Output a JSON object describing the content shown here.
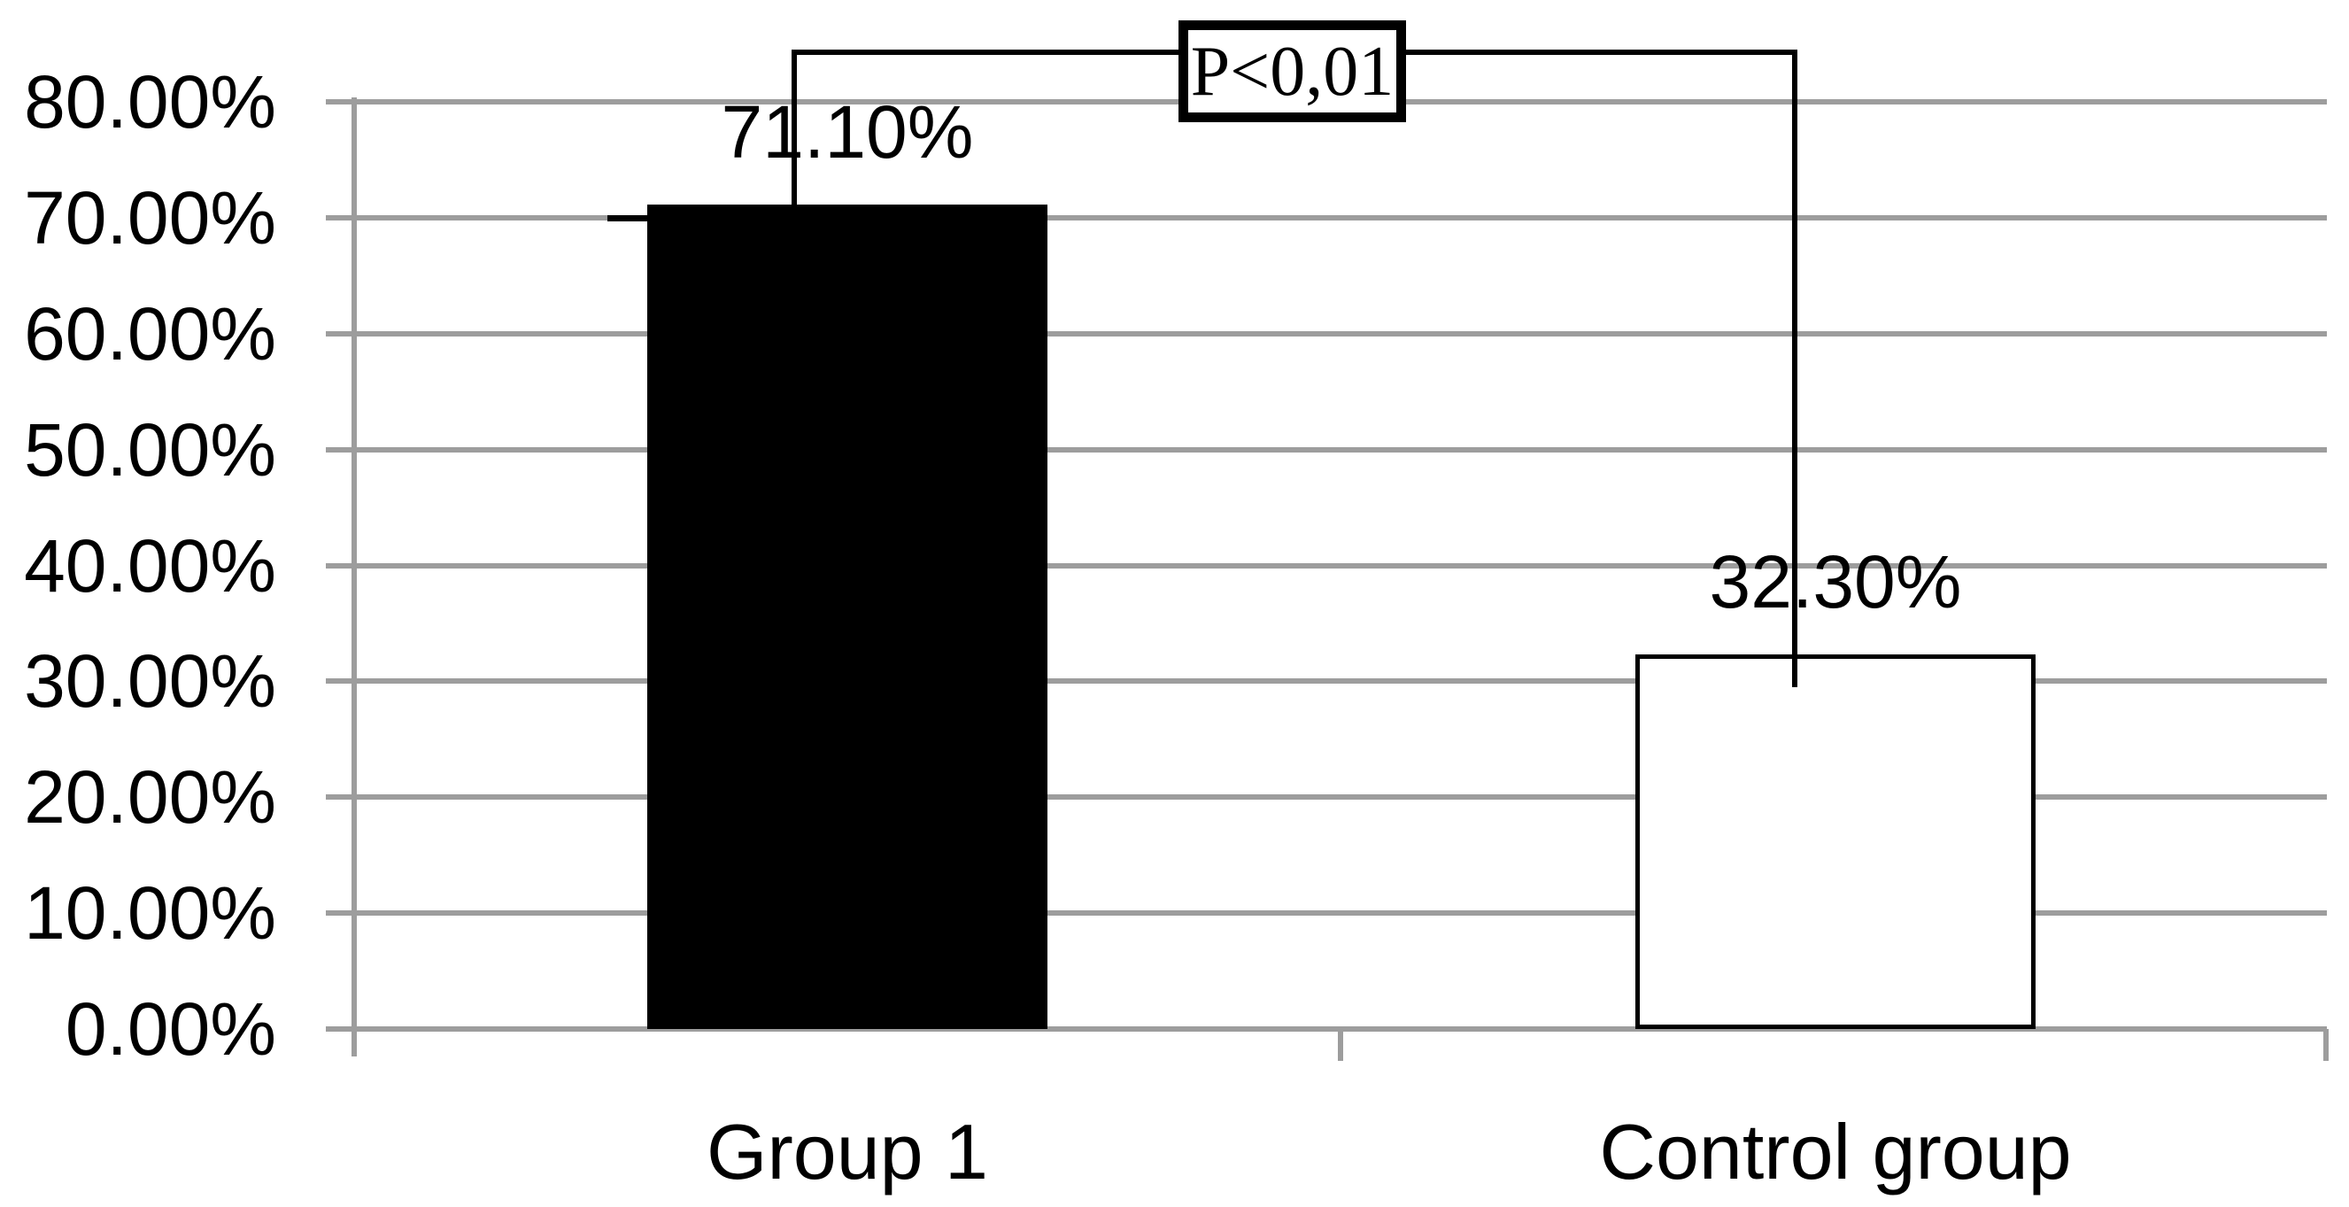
{
  "chart_data": {
    "type": "bar",
    "title": "",
    "xlabel": "",
    "ylabel": "",
    "categories": [
      "Group 1",
      "Control group"
    ],
    "values": [
      71.1,
      32.3
    ],
    "bars": [
      {
        "category": "Group 1",
        "value": 71.1,
        "data_label": "71.10%",
        "fill": "#000000",
        "border": "#000000"
      },
      {
        "category": "Control group",
        "value": 32.3,
        "data_label": "32.30%",
        "fill": "#ffffff",
        "border": "#000000"
      }
    ],
    "ylim": [
      0,
      80
    ],
    "yticks": [
      {
        "value": 80,
        "label": "80.00%"
      },
      {
        "value": 70,
        "label": "70.00%"
      },
      {
        "value": 60,
        "label": "60.00%"
      },
      {
        "value": 50,
        "label": "50.00%"
      },
      {
        "value": 40,
        "label": "40.00%"
      },
      {
        "value": 30,
        "label": "30.00%"
      },
      {
        "value": 20,
        "label": "20.00%"
      },
      {
        "value": 10,
        "label": "10.00%"
      },
      {
        "value": 0,
        "label": "0.00%"
      }
    ],
    "grid": true,
    "legend": "none",
    "annotation": {
      "type": "significance-bracket",
      "label": "P<0,01",
      "connects": [
        "Group 1",
        "Control group"
      ]
    },
    "colors": {
      "grid": "#9d9d9d",
      "axis": "#9d9d9d",
      "bracket": "#000000",
      "text": "#000000",
      "background": "#ffffff"
    }
  }
}
